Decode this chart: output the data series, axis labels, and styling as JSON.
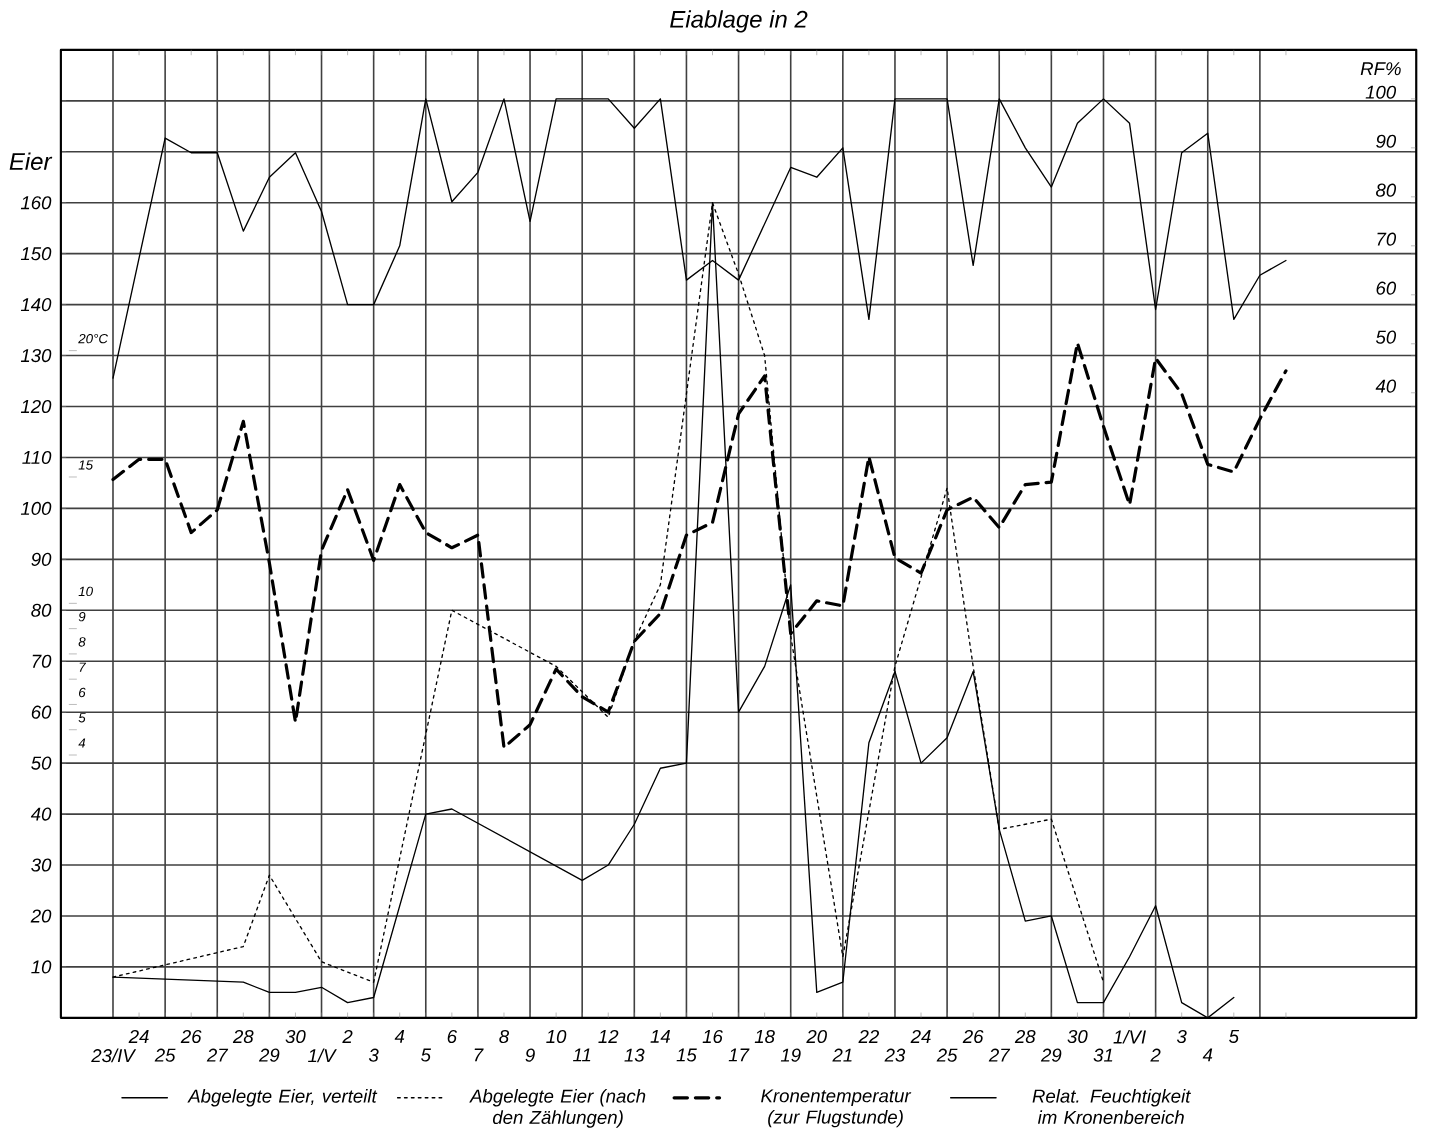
{
  "chart_data": {
    "type": "line",
    "title": "Eiablage in 2",
    "ylabel": "Eier",
    "y2label": "RF%",
    "categories": [
      "23/IV",
      "24",
      "25",
      "26",
      "27",
      "28",
      "29",
      "30",
      "1/V",
      "2",
      "3",
      "4",
      "5",
      "6",
      "7",
      "8",
      "9",
      "10",
      "11",
      "12",
      "13",
      "14",
      "15",
      "16",
      "17",
      "18",
      "19",
      "20",
      "21",
      "22",
      "23",
      "24",
      "25",
      "26",
      "27",
      "28",
      "29",
      "30",
      "31",
      "1/VI",
      "2",
      "3",
      "4",
      "5",
      null,
      null
    ],
    "series": [
      {
        "name": "Abgelegte Eier, verteilt",
        "color": "#000000",
        "line_style": "solid",
        "values": [
          8,
          null,
          null,
          null,
          null,
          7,
          5,
          5,
          6,
          3,
          4,
          null,
          40,
          41,
          null,
          null,
          null,
          null,
          27,
          30,
          38,
          49,
          50,
          160,
          60,
          69,
          85,
          5,
          7,
          54,
          68,
          50,
          55,
          68,
          37,
          19,
          20,
          3,
          3,
          12,
          22,
          3,
          0,
          4,
          null,
          null
        ]
      },
      {
        "name": "Abgelegte Eier (nach den Zählungen)",
        "color": "#000000",
        "line_style": "dotted",
        "values": [
          8,
          null,
          null,
          null,
          null,
          14,
          28,
          null,
          11,
          null,
          7,
          null,
          null,
          80,
          null,
          null,
          null,
          69,
          null,
          59,
          74,
          85,
          null,
          160,
          146,
          130,
          75,
          null,
          12,
          null,
          69,
          null,
          104,
          69,
          37,
          null,
          39,
          null,
          7,
          null,
          null,
          null,
          null,
          null,
          null,
          null
        ]
      },
      {
        "name": "Kronentemperatur (zur Flugstunde)",
        "color": "#000000",
        "line_style": "dashed",
        "axis": "y3",
        "values": [
          14.9,
          15.7,
          15.7,
          12.8,
          13.7,
          17.2,
          11.6,
          5.3,
          12.1,
          14.5,
          11.7,
          14.7,
          12.8,
          12.2,
          12.7,
          4.3,
          5.2,
          7.4,
          6.3,
          5.7,
          8.5,
          9.6,
          12.7,
          13.2,
          17.5,
          19.0,
          8.8,
          10.1,
          9.9,
          15.8,
          11.8,
          11.2,
          13.7,
          14.2,
          13.0,
          14.7,
          14.8,
          20.3,
          17.0,
          13.9,
          19.7,
          18.3,
          15.5,
          15.2,
          17.3,
          19.2
        ]
      },
      {
        "name": "Relat. Feuchtigkeit im Kronenbereich",
        "color": "#000000",
        "line_style": "solid",
        "axis": "y2",
        "values": [
          43,
          null,
          92,
          89,
          89,
          73,
          84,
          89,
          77,
          58,
          58,
          70,
          100,
          79,
          85,
          100,
          75,
          100,
          100,
          100,
          94,
          100,
          63,
          67,
          63,
          null,
          86,
          84,
          90,
          55,
          100,
          100,
          100,
          66,
          100,
          90,
          82,
          95,
          100,
          95,
          57,
          89,
          93,
          55,
          64,
          67
        ]
      }
    ],
    "ylim": [
      0,
      190
    ],
    "yticks": [
      10,
      20,
      30,
      40,
      50,
      60,
      70,
      80,
      90,
      100,
      110,
      120,
      130,
      140,
      150,
      160,
      {
        "value": 170,
        "label": null
      },
      {
        "value": 180,
        "label": null
      }
    ],
    "y2lim": [
      -87.6,
      110
    ],
    "y2ticks": [
      40,
      50,
      60,
      70,
      80,
      90,
      100
    ],
    "y3lim": [
      -6.4,
      31.9
    ],
    "y3ticks": [
      4,
      5,
      6,
      7,
      8,
      9,
      10,
      15,
      {
        "value": 20,
        "label": "20°C"
      }
    ],
    "grid": true,
    "legend": "bottom"
  }
}
